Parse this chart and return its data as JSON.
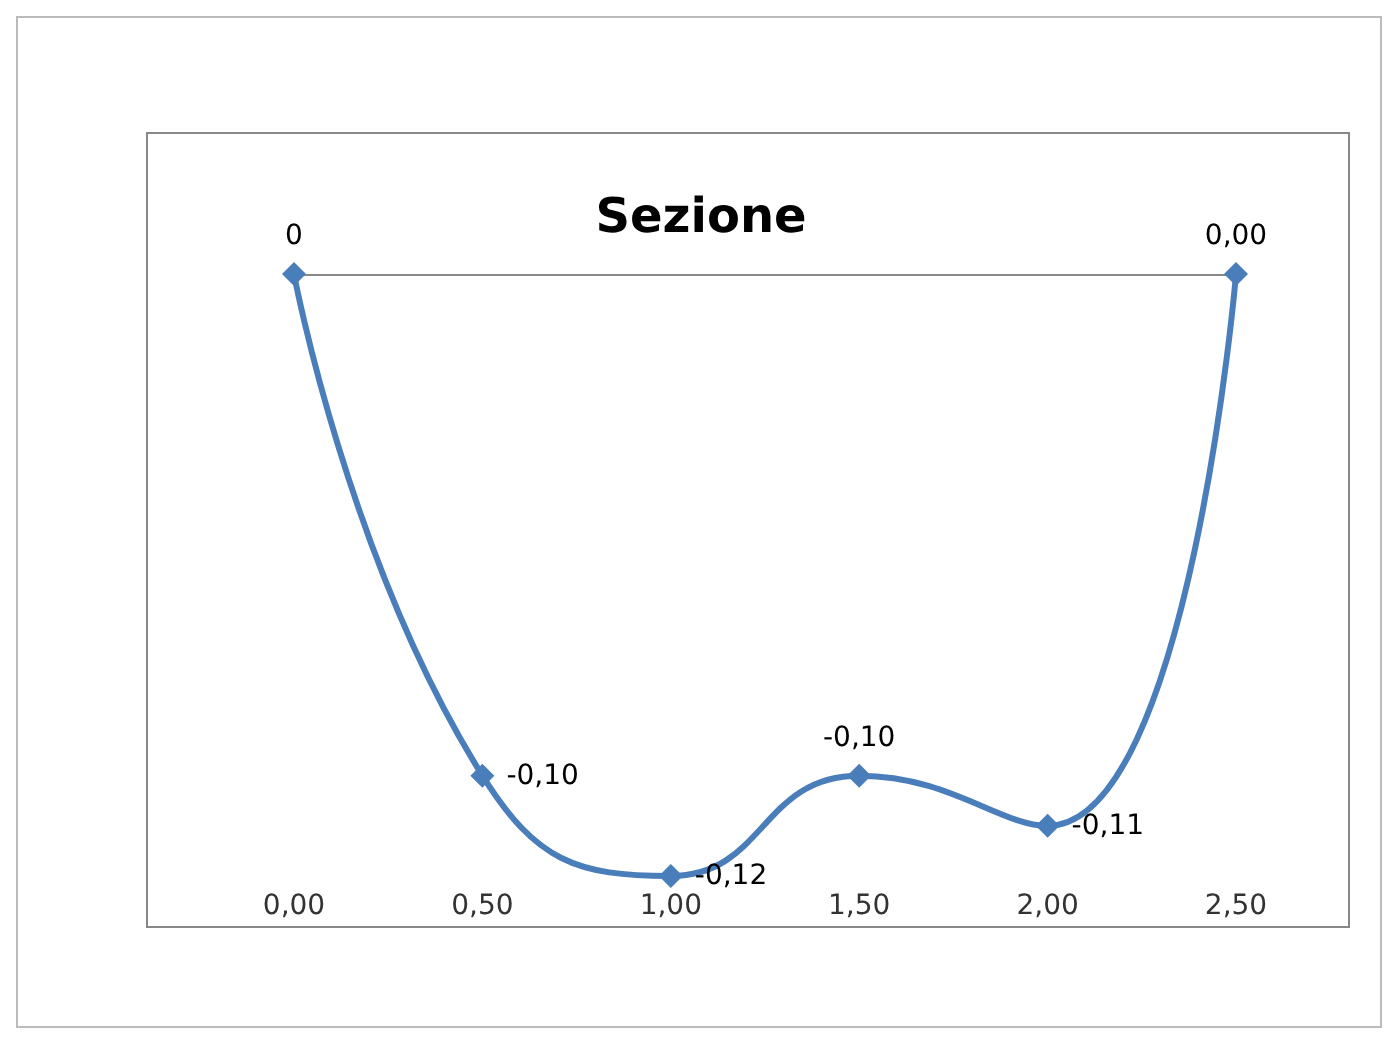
{
  "chart_data": {
    "type": "line",
    "title": "Sezione",
    "x": [
      0,
      0.5,
      1,
      1.5,
      2,
      2.5
    ],
    "series": [
      {
        "color": "#4a7ebb",
        "values": [
          0,
          -0.1,
          -0.12,
          -0.1,
          -0.11,
          0.0
        ],
        "value_labels": [
          "0",
          "-0,10",
          "-0,12",
          "-0,10",
          "-0,11",
          "0,00"
        ]
      }
    ],
    "xlim": [
      0,
      2.5
    ],
    "xticks": [
      {
        "value": 0,
        "label": "0,00"
      },
      {
        "value": 0.5,
        "label": "0,50"
      },
      {
        "value": 1,
        "label": "1,00"
      },
      {
        "value": 1.5,
        "label": "1,50"
      },
      {
        "value": 2,
        "label": "2,00"
      },
      {
        "value": 2.5,
        "label": "2,50"
      }
    ],
    "tick_labels": "x",
    "grid": false,
    "marker": "diamond",
    "line_style": "solid"
  }
}
